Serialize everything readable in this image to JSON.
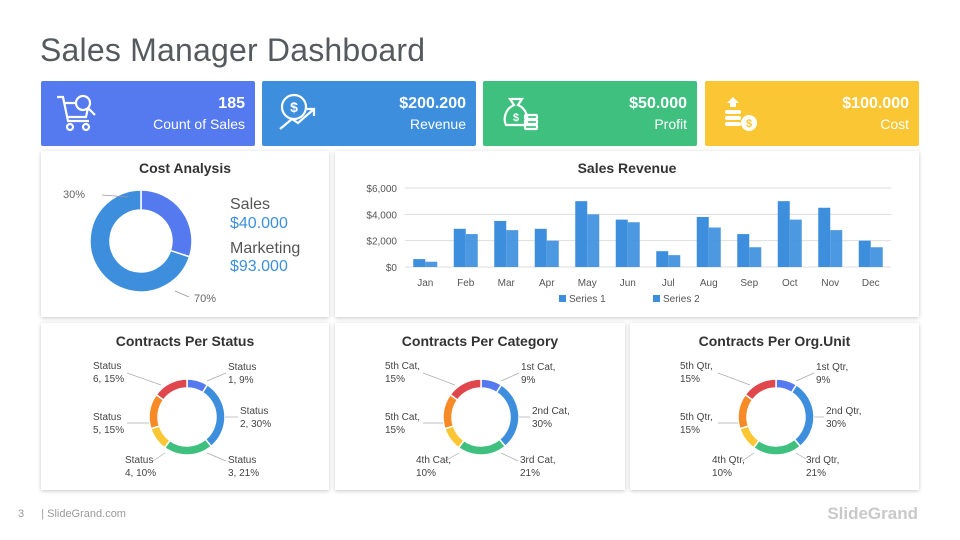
{
  "title": "Sales Manager Dashboard",
  "colors": {
    "blue": "#5579ee",
    "blue2": "#3d8fde",
    "green": "#3fc07f",
    "yellow": "#fbc633",
    "bar": "#3d8fde",
    "red": "#e0474c",
    "orange": "#f58a27",
    "amber": "#fbc633"
  },
  "kpis": [
    {
      "value": "185",
      "label": "Count of Sales",
      "icon": "cart-icon"
    },
    {
      "value": "$200.200",
      "label": "Revenue",
      "icon": "revenue-icon"
    },
    {
      "value": "$50.000",
      "label": "Profit",
      "icon": "money-bag-icon"
    },
    {
      "value": "$100.000",
      "label": "Cost",
      "icon": "coins-icon"
    }
  ],
  "cost_analysis": {
    "title": "Cost Analysis",
    "pct_small": "30%",
    "pct_large": "70%",
    "sales_label": "Sales",
    "sales_value": "$40.000",
    "marketing_label": "Marketing",
    "marketing_value": "$93.000"
  },
  "sales_revenue": {
    "title": "Sales Revenue"
  },
  "status": {
    "title": "Contracts Per Status",
    "labels": [
      [
        "Status",
        "1, 9%"
      ],
      [
        "Status",
        "2, 30%"
      ],
      [
        "Status",
        "3, 21%"
      ],
      [
        "Status",
        "4, 10%"
      ],
      [
        "Status",
        "5, 15%"
      ],
      [
        "Status",
        "6, 15%"
      ]
    ]
  },
  "category": {
    "title": "Contracts Per Category",
    "labels": [
      [
        "1st Cat,",
        "9%"
      ],
      [
        "2nd Cat,",
        "30%"
      ],
      [
        "3rd Cat,",
        "21%"
      ],
      [
        "4th Cat,",
        "10%"
      ],
      [
        "5th Cat,",
        "15%"
      ],
      [
        "5th Cat,",
        "15%"
      ]
    ]
  },
  "orgunit": {
    "title": "Contracts Per Org.Unit",
    "labels": [
      [
        "1st Qtr,",
        "9%"
      ],
      [
        "2nd Qtr,",
        "30%"
      ],
      [
        "3rd Qtr,",
        "21%"
      ],
      [
        "4th Qtr,",
        "10%"
      ],
      [
        "5th Qtr,",
        "15%"
      ],
      [
        "5th Qtr,",
        "15%"
      ]
    ]
  },
  "footer": {
    "page": "3",
    "site": "| SlideGrand.com",
    "logo": "SlideGrand"
  },
  "chart_data": [
    {
      "type": "pie",
      "title": "Cost Analysis",
      "categories": [
        "Sales",
        "Marketing"
      ],
      "values": [
        30,
        70
      ],
      "colors": [
        "#5579ee",
        "#3d8fde"
      ]
    },
    {
      "type": "bar",
      "title": "Sales Revenue",
      "categories": [
        "Jan",
        "Feb",
        "Mar",
        "Apr",
        "May",
        "Jun",
        "Jul",
        "Aug",
        "Sep",
        "Oct",
        "Nov",
        "Dec"
      ],
      "series": [
        {
          "name": "Series 1",
          "values": [
            600,
            2900,
            3500,
            2900,
            5000,
            3600,
            1200,
            3800,
            2500,
            5000,
            4500,
            2000
          ]
        },
        {
          "name": "Series 2",
          "values": [
            400,
            2500,
            2800,
            2000,
            4000,
            3400,
            900,
            3000,
            1500,
            3600,
            2800,
            1500
          ]
        }
      ],
      "yticks": [
        "$0",
        "$2,000",
        "$4,000",
        "$6,000"
      ],
      "ylim": [
        0,
        6000
      ],
      "legend": "bottom"
    },
    {
      "type": "pie",
      "title": "Contracts Per Status",
      "categories": [
        "Status 1",
        "Status 2",
        "Status 3",
        "Status 4",
        "Status 5",
        "Status 6"
      ],
      "values": [
        9,
        30,
        21,
        10,
        15,
        15
      ],
      "colors": [
        "#5579ee",
        "#3d8fde",
        "#3fc07f",
        "#fbc633",
        "#f58a27",
        "#e0474c"
      ]
    },
    {
      "type": "pie",
      "title": "Contracts Per Category",
      "categories": [
        "1st Cat",
        "2nd Cat",
        "3rd Cat",
        "4th Cat",
        "5th Cat",
        "5th Cat"
      ],
      "values": [
        9,
        30,
        21,
        10,
        15,
        15
      ],
      "colors": [
        "#5579ee",
        "#3d8fde",
        "#3fc07f",
        "#fbc633",
        "#f58a27",
        "#e0474c"
      ]
    },
    {
      "type": "pie",
      "title": "Contracts Per Org.Unit",
      "categories": [
        "1st Qtr",
        "2nd Qtr",
        "3rd Qtr",
        "4th Qtr",
        "5th Qtr",
        "5th Qtr"
      ],
      "values": [
        9,
        30,
        21,
        10,
        15,
        15
      ],
      "colors": [
        "#5579ee",
        "#3d8fde",
        "#3fc07f",
        "#fbc633",
        "#f58a27",
        "#e0474c"
      ]
    }
  ]
}
